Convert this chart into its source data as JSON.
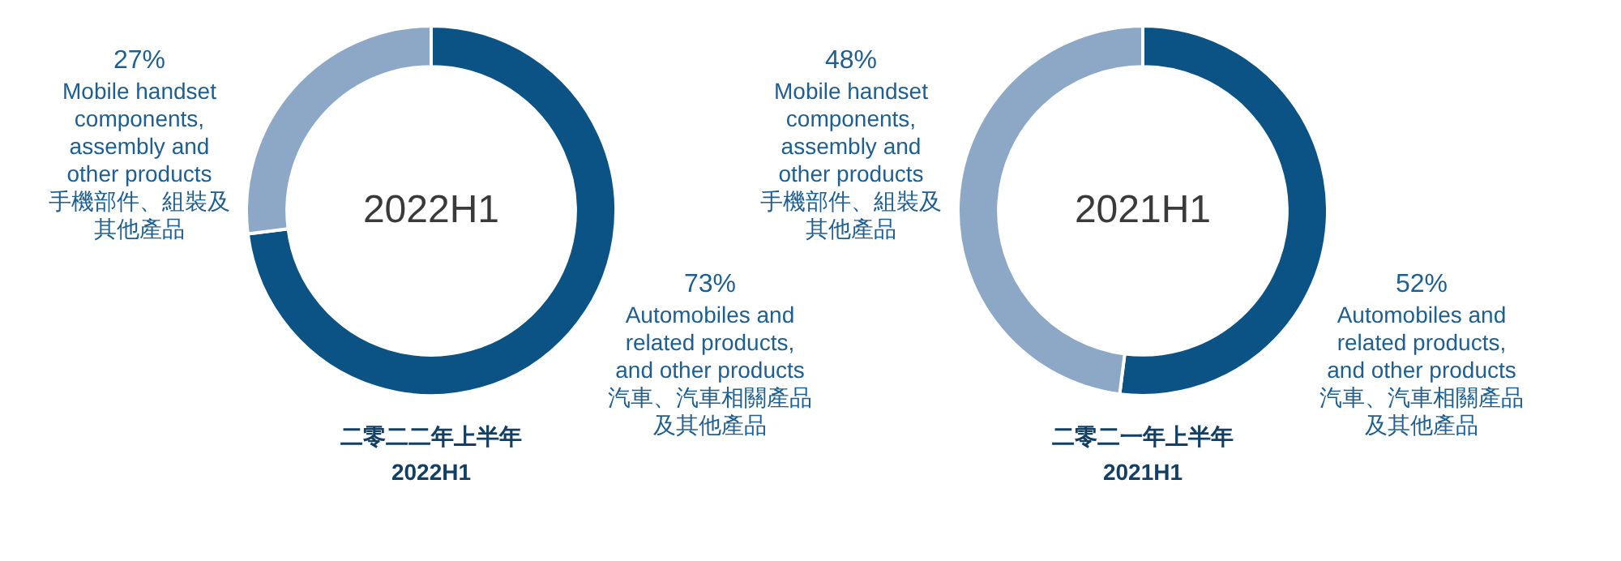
{
  "chart_data": [
    {
      "type": "donut",
      "title": "二零二二年上半年\n2022H1",
      "annotations": [
        "2022H1"
      ],
      "categories": [
        "Automobiles and\nrelated products,\nand other products\n汽車、汽車相關產品及其他產品",
        "Mobile handset\ncomponents,\nassembly and\nother products\n手機部件、組裝及其他產品"
      ],
      "values": [
        73,
        27
      ],
      "colors": [
        "#0b5285",
        "#8ca8c6"
      ],
      "value_labels": [
        "73%",
        "27%"
      ]
    },
    {
      "type": "donut",
      "title": "二零二一年上半年\n2021H1",
      "annotations": [
        "2021H1"
      ],
      "categories": [
        "Automobiles and\nrelated products,\nand other products\n汽車、汽車相關產品及其他產品",
        "Mobile handset\ncomponents,\nassembly and\nother products\n手機部件、組裝及其他產品"
      ],
      "values": [
        52,
        48
      ],
      "colors": [
        "#0b5285",
        "#8ca8c6"
      ],
      "value_labels": [
        "52%",
        "48%"
      ]
    }
  ]
}
